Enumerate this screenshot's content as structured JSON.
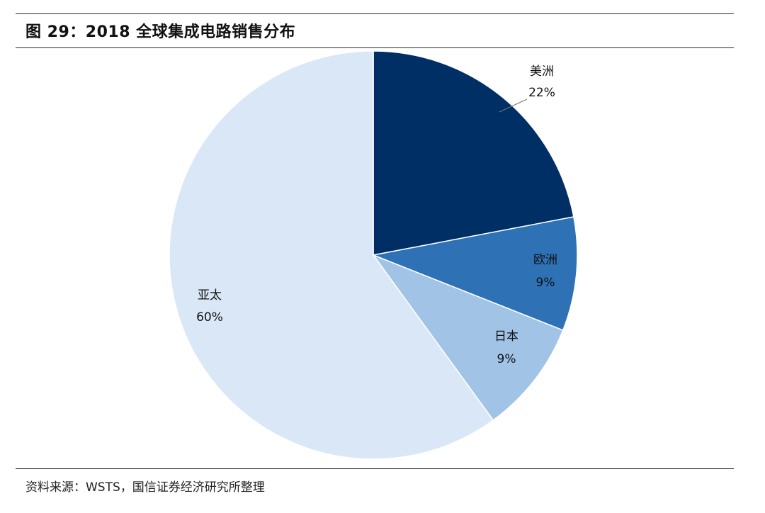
{
  "figure": {
    "title": "图 29：2018 全球集成电路销售分布",
    "source": "资料来源：WSTS，国信证券经济研究所整理"
  },
  "chart_data": {
    "type": "pie",
    "title": "",
    "start_angle": "12 o'clock",
    "direction": "clockwise",
    "slices": [
      {
        "name": "美洲",
        "value": 22,
        "label": "22%",
        "color": "#002F66"
      },
      {
        "name": "欧洲",
        "value": 9,
        "label": "9%",
        "color": "#2E71B5"
      },
      {
        "name": "日本",
        "value": 9,
        "label": "9%",
        "color": "#A0C3E6"
      },
      {
        "name": "亚太",
        "value": 60,
        "label": "60%",
        "color": "#DAE7F6"
      }
    ]
  }
}
